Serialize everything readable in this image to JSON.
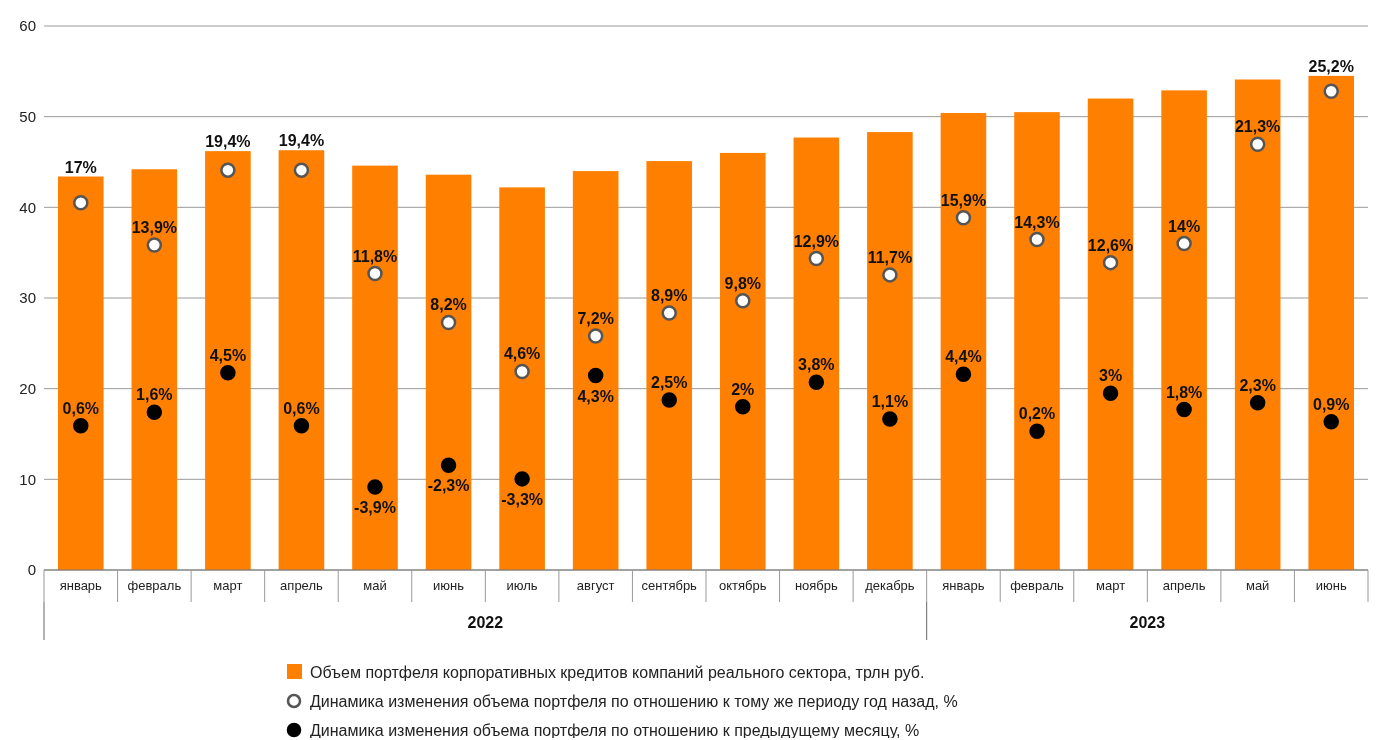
{
  "chart_data": {
    "type": "bar",
    "categories": [
      "январь",
      "февраль",
      "март",
      "апрель",
      "май",
      "июнь",
      "июль",
      "август",
      "сентябрь",
      "октябрь",
      "ноябрь",
      "декабрь",
      "январь",
      "февраль",
      "март",
      "апрель",
      "май",
      "июнь"
    ],
    "series": [
      {
        "name": "Объем портфеля корпоративных кредитов компаний реального сектора, трлн руб.",
        "color": "#ff8000",
        "values": [
          43.4,
          44.2,
          46.2,
          46.3,
          44.6,
          43.6,
          42.2,
          44.0,
          45.1,
          46.0,
          47.7,
          48.3,
          50.4,
          50.5,
          52.0,
          52.9,
          54.1,
          54.5
        ]
      },
      {
        "name": "Динамика изменения объема портфеля по отношению к тому же периоду год назад, %",
        "type": "scatter",
        "axis": "y2",
        "color": "#ffffff",
        "values": [
          17,
          13.9,
          19.4,
          19.4,
          11.8,
          8.2,
          4.6,
          7.2,
          8.9,
          9.8,
          12.9,
          11.7,
          15.9,
          14.3,
          12.6,
          14,
          21.3,
          25.2
        ],
        "value_labels": [
          "17%",
          "13,9%",
          "19,4%",
          "19,4%",
          "11,8%",
          "8,2%",
          "4,6%",
          "7,2%",
          "8,9%",
          "9,8%",
          "12,9%",
          "11,7%",
          "15,9%",
          "14,3%",
          "12,6%",
          "14%",
          "21,3%",
          "25,2%"
        ]
      },
      {
        "name": "Динамика изменения объема портфеля по отношению к предыдущему месяцу, %",
        "type": "scatter",
        "axis": "y2",
        "color": "#000000",
        "values": [
          0.6,
          1.6,
          4.5,
          0.6,
          -3.9,
          -2.3,
          -3.3,
          4.3,
          2.5,
          2,
          3.8,
          1.1,
          4.4,
          0.2,
          3,
          1.8,
          2.3,
          0.9
        ],
        "value_labels": [
          "0,6%",
          "1,6%",
          "4,5%",
          "0,6%",
          "-3,9%",
          "-2,3%",
          "-3,3%",
          "4,3%",
          "2,5%",
          "2%",
          "3,8%",
          "1,1%",
          "4,4%",
          "0,2%",
          "3%",
          "1,8%",
          "2,3%",
          "0,9%"
        ]
      }
    ],
    "ylim": [
      0,
      60
    ],
    "yticks": [
      0,
      10,
      20,
      30,
      40,
      50,
      60
    ],
    "y2lim": [
      -10,
      30
    ],
    "grid": "y",
    "marker": "circle",
    "legend": "bottom",
    "annotations": [
      "2022",
      "2023"
    ]
  }
}
